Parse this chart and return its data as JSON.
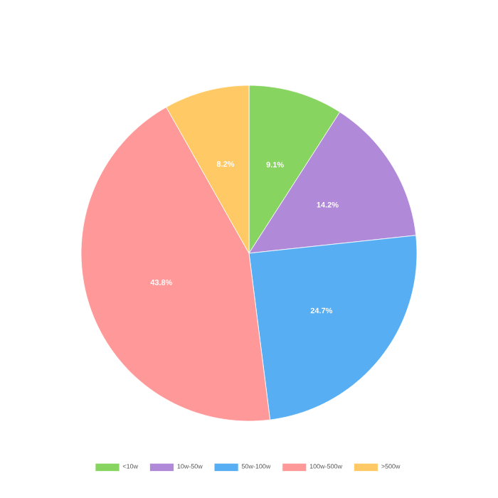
{
  "chart_data": {
    "type": "pie",
    "categories": [
      "<10w",
      "10w-50w",
      "50w-100w",
      "100w-500w",
      ">500w"
    ],
    "values": [
      9.1,
      14.2,
      24.7,
      43.8,
      8.2
    ],
    "value_labels": [
      "9.1%",
      "14.2%",
      "24.7%",
      "43.8%",
      "8.2%"
    ],
    "colors": [
      "#88d460",
      "#b08ad8",
      "#58aef2",
      "#ff9999",
      "#ffc966"
    ],
    "legend": "bottom"
  }
}
